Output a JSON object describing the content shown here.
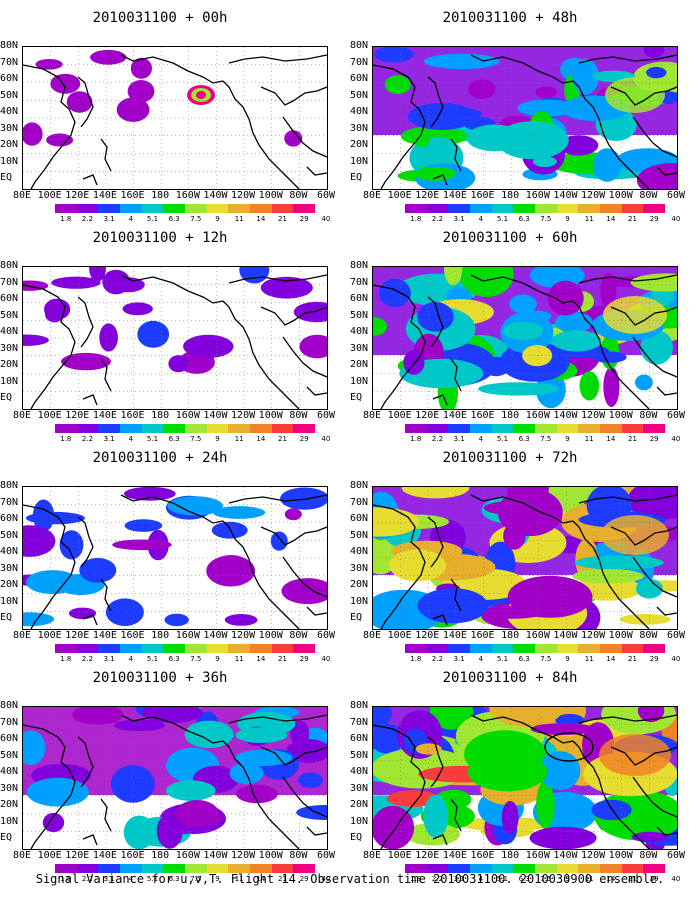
{
  "figure": {
    "caption": "Signal Variance for u,v,T. Flight 14. Observation time 2010031100. 2010030900 ensemble.",
    "lat_labels": [
      "80N",
      "70N",
      "60N",
      "50N",
      "40N",
      "30N",
      "20N",
      "10N",
      "EQ"
    ],
    "lon_labels": [
      "80E",
      "100E",
      "120E",
      "140E",
      "160E",
      "180",
      "160W",
      "140W",
      "120W",
      "100W",
      "80W",
      "60W"
    ],
    "colorbar": {
      "levels": [
        "1.8",
        "2.2",
        "3.1",
        "4",
        "5.1",
        "6.3",
        "7.5",
        "9",
        "11",
        "14",
        "21",
        "29",
        "40"
      ],
      "colors": [
        "#a000c8",
        "#8200dc",
        "#1e3cff",
        "#00a0ff",
        "#00c8c8",
        "#00dc00",
        "#a0e632",
        "#e6dc32",
        "#e6af2d",
        "#f08228",
        "#fa3c3c",
        "#f00082"
      ]
    },
    "panels": [
      {
        "title": "2010031100 + 00h",
        "intensity": 0
      },
      {
        "title": "2010031100 + 12h",
        "intensity": 1
      },
      {
        "title": "2010031100 + 24h",
        "intensity": 2
      },
      {
        "title": "2010031100 + 36h",
        "intensity": 3
      },
      {
        "title": "2010031100 + 48h",
        "intensity": 4
      },
      {
        "title": "2010031100 + 60h",
        "intensity": 5
      },
      {
        "title": "2010031100 + 72h",
        "intensity": 6
      },
      {
        "title": "2010031100 + 84h",
        "intensity": 7
      }
    ]
  }
}
